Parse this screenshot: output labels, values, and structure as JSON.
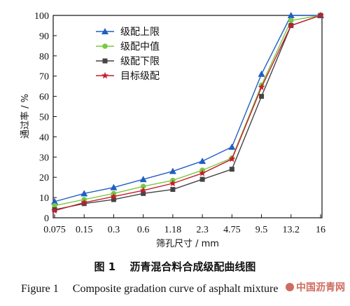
{
  "chart_data": {
    "type": "line",
    "categories": [
      "0.075",
      "0.15",
      "0.3",
      "0.6",
      "1.18",
      "2.3",
      "4.75",
      "9.5",
      "13.2",
      "16"
    ],
    "xlabel": "筛孔尺寸 / mm",
    "ylabel": "通过率 / %",
    "ylim": [
      0,
      100
    ],
    "yticks": [
      0,
      10,
      20,
      30,
      40,
      50,
      60,
      70,
      80,
      90,
      100
    ],
    "legend_position": "top-left",
    "grid": false,
    "series": [
      {
        "name": "级配上限",
        "color": "#1f5fc4",
        "marker": "triangle",
        "values": [
          8,
          12,
          15,
          19,
          23,
          28,
          35,
          71,
          100,
          100
        ]
      },
      {
        "name": "级配中值",
        "color": "#7ac943",
        "marker": "circle",
        "values": [
          6,
          9,
          12,
          15.5,
          18.5,
          23.5,
          29.5,
          65.5,
          97.5,
          100
        ]
      },
      {
        "name": "级配下限",
        "color": "#444444",
        "marker": "square",
        "values": [
          4,
          7,
          9,
          12,
          14,
          19,
          24,
          60,
          95,
          100
        ]
      },
      {
        "name": "目标级配",
        "color": "#c41e2b",
        "marker": "star",
        "values": [
          3.5,
          7.5,
          10.5,
          13.5,
          17,
          22,
          29,
          64.5,
          95,
          100
        ]
      }
    ]
  },
  "caption": {
    "cn": "图 1　 沥青混合料合成级配曲线图",
    "en": "Figure 1　 Composite gradation curve of asphalt mixture"
  },
  "watermark": {
    "text": "中国沥青网",
    "color": "#c03a2b"
  }
}
